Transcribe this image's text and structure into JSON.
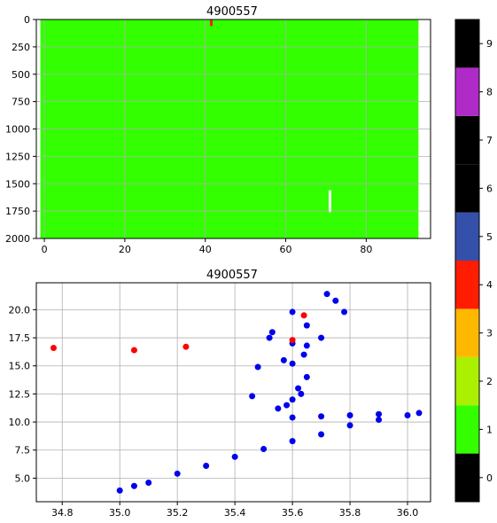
{
  "chart_data": [
    {
      "type": "heatmap",
      "title": "4900557",
      "xlabel": "",
      "ylabel": "",
      "xlim": [
        -2,
        96
      ],
      "ylim": [
        2000,
        0
      ],
      "y_inverted": true,
      "xticks": [
        0,
        20,
        40,
        60,
        80
      ],
      "yticks": [
        0,
        250,
        500,
        750,
        1000,
        1250,
        1500,
        1750,
        2000
      ],
      "grid": true,
      "fill_value": 1,
      "fill_extent": {
        "x": [
          -1,
          93
        ],
        "y": [
          0,
          2000
        ]
      },
      "features": [
        {
          "label": "red flag near surface",
          "value": 4,
          "x": 41.5,
          "y": [
            0,
            60
          ]
        },
        {
          "label": "white gap",
          "value": null,
          "x": 71,
          "y": [
            1560,
            1760
          ]
        }
      ]
    },
    {
      "type": "scatter",
      "title": "4900557",
      "xlabel": "",
      "ylabel": "",
      "xlim": [
        34.71,
        36.08
      ],
      "ylim": [
        2.9,
        22.4
      ],
      "xticks": [
        34.8,
        35.0,
        35.2,
        35.4,
        35.6,
        35.8,
        36.0
      ],
      "xtick_labels": [
        "34.8",
        "35.0",
        "35.2",
        "35.4",
        "35.6",
        "35.8",
        "36.0"
      ],
      "yticks": [
        5.0,
        7.5,
        10.0,
        12.5,
        15.0,
        17.5,
        20.0
      ],
      "ytick_labels": [
        "5.0",
        "7.5",
        "10.0",
        "12.5",
        "15.0",
        "17.5",
        "20.0"
      ],
      "grid": true,
      "series": [
        {
          "color": "#0000ee",
          "points": [
            [
              35.0,
              3.9
            ],
            [
              35.05,
              4.3
            ],
            [
              35.1,
              4.6
            ],
            [
              35.2,
              5.4
            ],
            [
              35.3,
              6.1
            ],
            [
              35.4,
              6.9
            ],
            [
              35.5,
              7.6
            ],
            [
              35.6,
              8.3
            ],
            [
              35.7,
              8.9
            ],
            [
              35.8,
              9.7
            ],
            [
              35.9,
              10.2
            ],
            [
              36.0,
              10.6
            ],
            [
              36.04,
              10.8
            ],
            [
              35.6,
              10.4
            ],
            [
              35.7,
              10.5
            ],
            [
              35.8,
              10.6
            ],
            [
              35.9,
              10.7
            ],
            [
              35.55,
              11.2
            ],
            [
              35.6,
              12.0
            ],
            [
              35.62,
              13.0
            ],
            [
              35.65,
              14.0
            ],
            [
              35.6,
              15.2
            ],
            [
              35.64,
              16.0
            ],
            [
              35.65,
              16.8
            ],
            [
              35.7,
              17.5
            ],
            [
              35.6,
              17.0
            ],
            [
              35.65,
              18.6
            ],
            [
              35.6,
              19.8
            ],
            [
              35.72,
              21.4
            ],
            [
              35.75,
              20.8
            ],
            [
              35.78,
              19.8
            ],
            [
              35.52,
              17.5
            ],
            [
              35.53,
              18.0
            ],
            [
              35.46,
              12.3
            ],
            [
              35.48,
              14.9
            ],
            [
              35.57,
              15.5
            ],
            [
              35.63,
              12.5
            ],
            [
              35.58,
              11.5
            ]
          ]
        },
        {
          "color": "#ff0000",
          "points": [
            [
              34.77,
              16.6
            ],
            [
              35.05,
              16.4
            ],
            [
              35.23,
              16.7
            ],
            [
              35.6,
              17.3
            ],
            [
              35.64,
              19.5
            ]
          ]
        }
      ]
    },
    {
      "type": "colorbar",
      "range": [
        -0.5,
        9.5
      ],
      "ticks": [
        0,
        1,
        2,
        3,
        4,
        5,
        6,
        7,
        8,
        9
      ],
      "colors": [
        "#000000",
        "#33ff00",
        "#aaf000",
        "#ffb800",
        "#ff1c00",
        "#3550aa",
        "#000000",
        "#000000",
        "#b02ac8",
        "#000000"
      ]
    }
  ]
}
